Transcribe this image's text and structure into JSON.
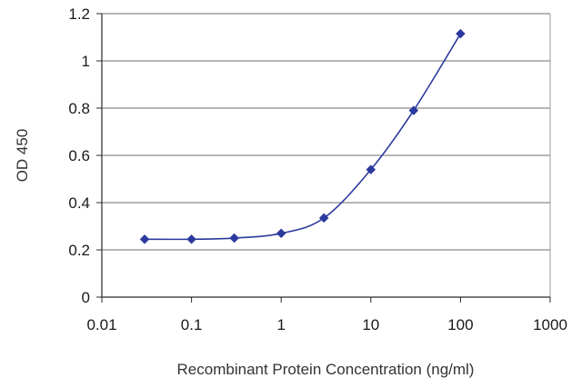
{
  "chart_data": {
    "type": "line",
    "xlabel": "Recombinant Protein Concentration (ng/ml)",
    "ylabel": "OD 450",
    "x_scale": "log",
    "xlim": [
      0.01,
      1000
    ],
    "ylim": [
      0,
      1.2
    ],
    "x_ticks": [
      0.01,
      0.1,
      1,
      10,
      100,
      1000
    ],
    "x_tick_labels": [
      "0.01",
      "0.1",
      "1",
      "10",
      "100",
      "1000"
    ],
    "y_ticks": [
      0,
      0.2,
      0.4,
      0.6,
      0.8,
      1,
      1.2
    ],
    "y_tick_labels": [
      "0",
      "0.2",
      "0.4",
      "0.6",
      "0.8",
      "1",
      "1.2"
    ],
    "grid": "horizontal",
    "legend": "none",
    "series": [
      {
        "color": "#2c3a9e",
        "marker": "diamond",
        "x": [
          0.03,
          0.1,
          0.3,
          1,
          3,
          10,
          30,
          100
        ],
        "y": [
          0.245,
          0.245,
          0.25,
          0.27,
          0.335,
          0.54,
          0.79,
          1.115
        ]
      }
    ]
  }
}
